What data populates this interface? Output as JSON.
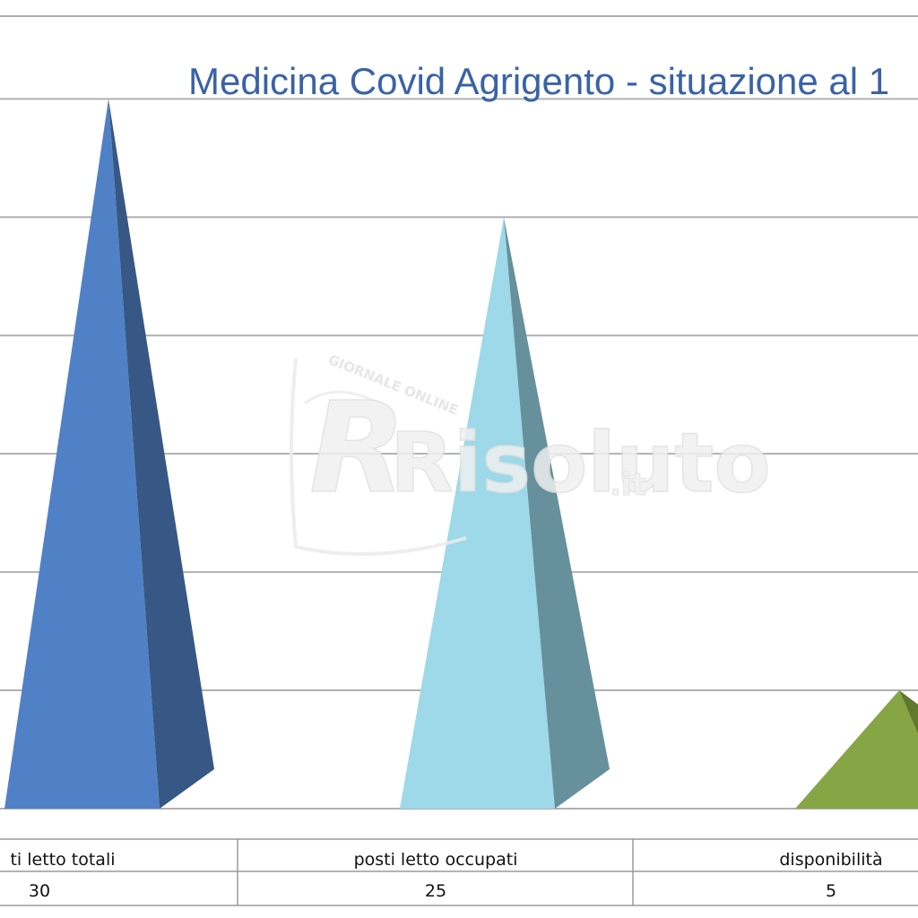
{
  "chart_data": {
    "type": "bar",
    "bar_shape": "pyramid-3d",
    "title": "Medicina Covid Agrigento - situazione al 1",
    "categories": [
      "ti letto totali",
      "posti letto occupati",
      "disponibilità"
    ],
    "values": [
      30,
      25,
      5
    ],
    "value_labels": [
      "30",
      "25",
      "5"
    ],
    "series": [
      {
        "values": [
          30,
          25,
          5
        ]
      }
    ],
    "ylim": [
      0,
      33.5
    ],
    "ytick_step": 5,
    "grid": true,
    "legend": "none",
    "data_table": true,
    "colors": {
      "title": "#3a63a6",
      "gridline": "#b0b0b0",
      "table_border": "#9a9a9a",
      "bars": [
        {
          "front": "#5081c6",
          "side": "#375885"
        },
        {
          "front": "#9dd9e8",
          "side": "#66909c"
        },
        {
          "front": "#86a646",
          "side": "#5f7a2c"
        }
      ]
    }
  },
  "watermark": {
    "brand": "Risoluto",
    "suffix": ".it",
    "tagline": "GIORNALE ONLINE"
  }
}
